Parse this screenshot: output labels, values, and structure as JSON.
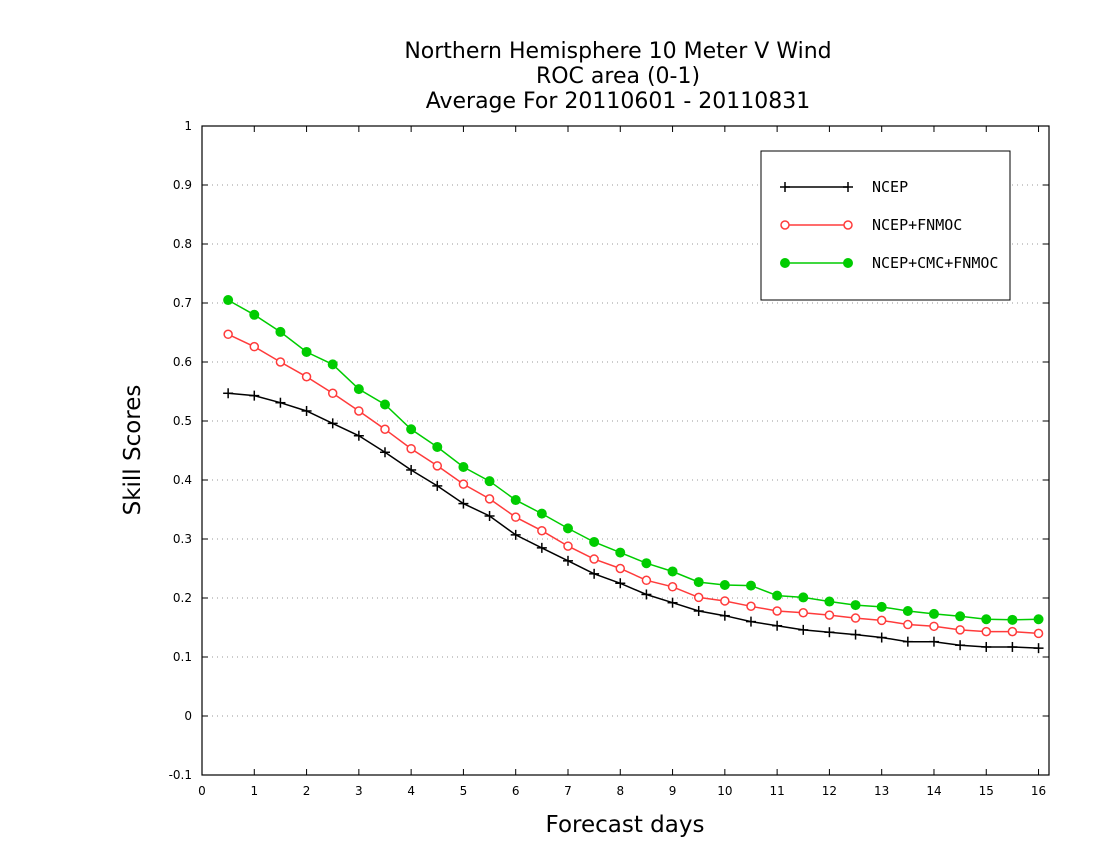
{
  "chart_data": {
    "type": "line",
    "title": [
      "Northern Hemisphere 10 Meter V Wind",
      "ROC area (0-1)",
      "Average For 20110601 - 20110831"
    ],
    "xlabel": "Forecast days",
    "ylabel": "Skill Scores",
    "xlim": [
      0,
      16.2
    ],
    "ylim": [
      -0.1,
      1
    ],
    "x_ticks": [
      "0",
      "1",
      "2",
      "3",
      "4",
      "5",
      "6",
      "7",
      "8",
      "9",
      "10",
      "11",
      "12",
      "13",
      "14",
      "15",
      "16"
    ],
    "y_ticks": [
      "-0.1",
      "0",
      "0.1",
      "0.2",
      "0.3",
      "0.4",
      "0.5",
      "0.6",
      "0.7",
      "0.8",
      "0.9",
      "1"
    ],
    "grid": "horizontal dotted",
    "legend_position": "top-right",
    "x": [
      0.5,
      1,
      1.5,
      2,
      2.5,
      3,
      3.5,
      4,
      4.5,
      5,
      5.5,
      6,
      6.5,
      7,
      7.5,
      8,
      8.5,
      9,
      9.5,
      10,
      10.5,
      11,
      11.5,
      12,
      12.5,
      13,
      13.5,
      14,
      14.5,
      15,
      15.5,
      16
    ],
    "series": [
      {
        "name": "NCEP",
        "color": "#000000",
        "marker": "plus",
        "values": [
          0.547,
          0.543,
          0.531,
          0.517,
          0.496,
          0.475,
          0.447,
          0.417,
          0.39,
          0.36,
          0.339,
          0.307,
          0.285,
          0.263,
          0.241,
          0.225,
          0.206,
          0.192,
          0.178,
          0.17,
          0.16,
          0.153,
          0.146,
          0.142,
          0.138,
          0.133,
          0.126,
          0.126,
          0.12,
          0.117,
          0.117,
          0.115
        ]
      },
      {
        "name": "NCEP+FNMOC",
        "color": "#ff3b3b",
        "marker": "open-circle",
        "values": [
          0.647,
          0.626,
          0.6,
          0.575,
          0.547,
          0.517,
          0.486,
          0.453,
          0.424,
          0.393,
          0.368,
          0.337,
          0.314,
          0.288,
          0.266,
          0.25,
          0.23,
          0.219,
          0.201,
          0.195,
          0.186,
          0.178,
          0.175,
          0.171,
          0.166,
          0.162,
          0.155,
          0.152,
          0.146,
          0.143,
          0.143,
          0.14
        ]
      },
      {
        "name": "NCEP+CMC+FNMOC",
        "color": "#00cc00",
        "marker": "filled-circle",
        "values": [
          0.705,
          0.68,
          0.651,
          0.617,
          0.596,
          0.554,
          0.528,
          0.486,
          0.456,
          0.422,
          0.398,
          0.366,
          0.343,
          0.318,
          0.295,
          0.277,
          0.259,
          0.245,
          0.227,
          0.222,
          0.221,
          0.204,
          0.201,
          0.194,
          0.188,
          0.185,
          0.178,
          0.173,
          0.169,
          0.164,
          0.163,
          0.164
        ]
      }
    ]
  }
}
